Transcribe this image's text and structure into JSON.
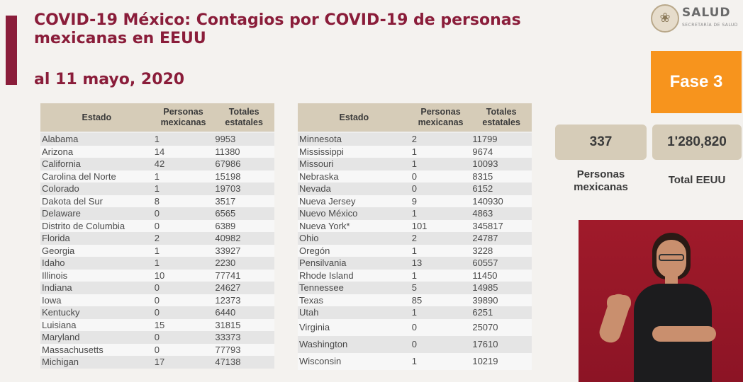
{
  "header": {
    "title": "COVID-19 México: Contagios por COVID-19 de personas mexicanas en EEUU",
    "date": "al 11 mayo, 2020"
  },
  "logo": {
    "brand": "SALUD",
    "subtitle": "SECRETARÍA DE SALUD"
  },
  "table_columns": {
    "estado": "Estado",
    "personas": "Personas mexicanas",
    "totales": "Totales estatales"
  },
  "left_rows": [
    {
      "estado": "Alabama",
      "personas": "1",
      "totales": "9953"
    },
    {
      "estado": "Arizona",
      "personas": "14",
      "totales": "11380"
    },
    {
      "estado": "California",
      "personas": "42",
      "totales": "67986"
    },
    {
      "estado": "Carolina del Norte",
      "personas": "1",
      "totales": "15198"
    },
    {
      "estado": "Colorado",
      "personas": "1",
      "totales": "19703"
    },
    {
      "estado": "Dakota del Sur",
      "personas": "8",
      "totales": "3517"
    },
    {
      "estado": "Delaware",
      "personas": "0",
      "totales": "6565"
    },
    {
      "estado": "Distrito de Columbia",
      "personas": "0",
      "totales": "6389"
    },
    {
      "estado": "Florida",
      "personas": "2",
      "totales": "40982"
    },
    {
      "estado": "Georgia",
      "personas": "1",
      "totales": "33927"
    },
    {
      "estado": "Idaho",
      "personas": "1",
      "totales": "2230"
    },
    {
      "estado": "Illinois",
      "personas": "10",
      "totales": "77741"
    },
    {
      "estado": "Indiana",
      "personas": "0",
      "totales": "24627"
    },
    {
      "estado": "Iowa",
      "personas": "0",
      "totales": "12373"
    },
    {
      "estado": "Kentucky",
      "personas": "0",
      "totales": "6440"
    },
    {
      "estado": "Luisiana",
      "personas": "15",
      "totales": "31815"
    },
    {
      "estado": "Maryland",
      "personas": "0",
      "totales": "33373"
    },
    {
      "estado": "Massachusetts",
      "personas": "0",
      "totales": "77793"
    },
    {
      "estado": "Michigan",
      "personas": "17",
      "totales": "47138"
    }
  ],
  "right_rows": [
    {
      "estado": "Minnesota",
      "personas": "2",
      "totales": "11799"
    },
    {
      "estado": "Mississippi",
      "personas": "1",
      "totales": "9674"
    },
    {
      "estado": "Missouri",
      "personas": "1",
      "totales": "10093"
    },
    {
      "estado": "Nebraska",
      "personas": "0",
      "totales": "8315"
    },
    {
      "estado": "Nevada",
      "personas": "0",
      "totales": "6152"
    },
    {
      "estado": "Nueva Jersey",
      "personas": "9",
      "totales": "140930"
    },
    {
      "estado": "Nuevo México",
      "personas": "1",
      "totales": "4863"
    },
    {
      "estado": "Nueva York*",
      "personas": "101",
      "totales": "345817"
    },
    {
      "estado": "Ohio",
      "personas": "2",
      "totales": "24787"
    },
    {
      "estado": "Oregón",
      "personas": "1",
      "totales": "3228"
    },
    {
      "estado": "Pensilvania",
      "personas": "13",
      "totales": "60557"
    },
    {
      "estado": "Rhode Island",
      "personas": "1",
      "totales": "11450"
    },
    {
      "estado": "Tennessee",
      "personas": "5",
      "totales": "14985"
    },
    {
      "estado": "Texas",
      "personas": "85",
      "totales": "39890"
    },
    {
      "estado": "Utah",
      "personas": "1",
      "totales": "6251"
    },
    {
      "estado": "Virginia",
      "personas": "0",
      "totales": "25070"
    },
    {
      "estado": "Washington",
      "personas": "0",
      "totales": "17610"
    },
    {
      "estado": "Wisconsin",
      "personas": "1",
      "totales": "10219"
    }
  ],
  "summary": {
    "fase": "Fase 3",
    "personas_value": "337",
    "personas_label": "Personas mexicanas",
    "total_value": "1'280,820",
    "total_label": "Total EEUU"
  },
  "colors": {
    "accent": "#8a1d3a",
    "fase": "#f7941d",
    "header_bg": "#d6ccb8"
  }
}
